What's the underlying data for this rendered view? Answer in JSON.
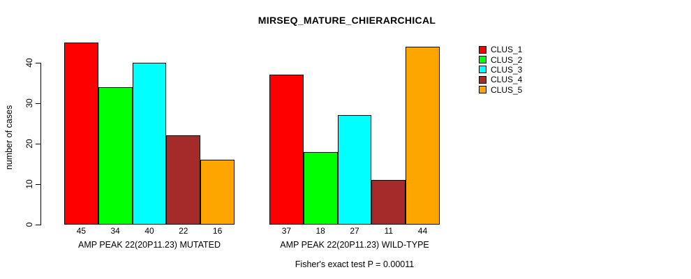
{
  "title": "MIRSEQ_MATURE_CHIERARCHICAL",
  "chart_data": {
    "type": "bar",
    "title": "MIRSEQ_MATURE_CHIERARCHICAL",
    "ylabel": "number of cases",
    "xlabel": "",
    "ylim": [
      0,
      45
    ],
    "yticks": [
      0,
      10,
      20,
      30,
      40
    ],
    "grid": false,
    "legend_position": "right",
    "bar_value_labels_shown": true,
    "series": [
      {
        "name": "CLUS_1",
        "color": "#FF0000"
      },
      {
        "name": "CLUS_2",
        "color": "#00FF00"
      },
      {
        "name": "CLUS_3",
        "color": "#00FFFF"
      },
      {
        "name": "CLUS_4",
        "color": "#A52A2A"
      },
      {
        "name": "CLUS_5",
        "color": "#FFA500"
      }
    ],
    "groups": [
      {
        "label": "AMP PEAK 22(20P11.23) MUTATED",
        "values": [
          45,
          34,
          40,
          22,
          16
        ]
      },
      {
        "label": "AMP PEAK 22(20P11.23) WILD-TYPE",
        "values": [
          37,
          18,
          27,
          11,
          44
        ]
      }
    ],
    "footnote": "Fisher's exact test P = 0.00011"
  }
}
